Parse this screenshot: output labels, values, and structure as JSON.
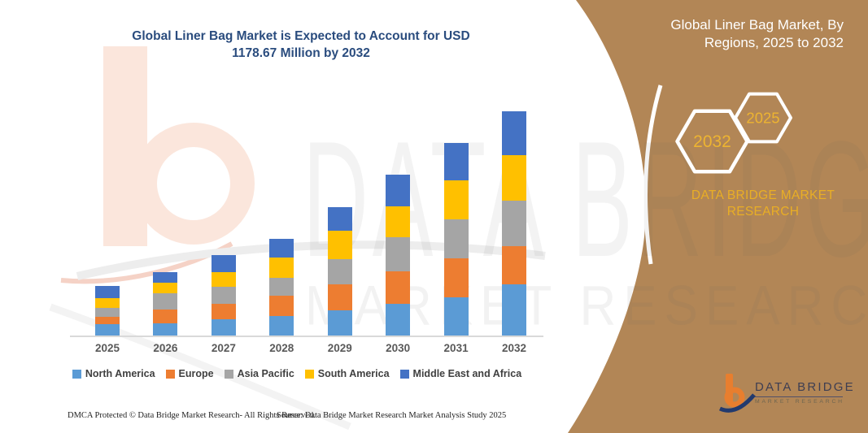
{
  "title": {
    "line1": "Global Liner Bag Market is Expected to Account for USD",
    "line2": "1178.67 Million by 2032"
  },
  "side_panel": {
    "heading_line1": "Global Liner Bag Market, By",
    "heading_line2": "Regions, 2025 to 2032",
    "hexagon_left_year": "2032",
    "hexagon_right_year": "2025",
    "brand_line1": "DATA BRIDGE MARKET",
    "brand_line2": "RESEARCH",
    "panel_color": "#B28656",
    "gold_color": "#EDB431"
  },
  "logo": {
    "name": "DATA BRIDGE",
    "subtitle": "MARKET RESEARCH",
    "orange": "#E87E2E",
    "navy": "#223A6E"
  },
  "watermark": {
    "line1": "DATA BRIDGE",
    "line2": "MARKET RESEARCH"
  },
  "footer": {
    "left": "DMCA Protected © Data Bridge Market Research-  All Rights Reserved.",
    "right": "Source: Data Bridge Market Research  Market Analysis Study 2025"
  },
  "chart_data": {
    "type": "bar",
    "stacked": true,
    "title": "Global Liner Bag Market is Expected to Account for USD 1178.67 Million by 2032",
    "unit": "USD Million",
    "categories": [
      "2025",
      "2026",
      "2027",
      "2028",
      "2029",
      "2030",
      "2031",
      "2032"
    ],
    "series": [
      {
        "name": "North America",
        "color": "#5B9BD5",
        "values": [
          60,
          65,
          87,
          104,
          132,
          165,
          201,
          268
        ]
      },
      {
        "name": "Europe",
        "color": "#ED7D31",
        "values": [
          37,
          71,
          78,
          104,
          139,
          171,
          206,
          201
        ]
      },
      {
        "name": "Asia Pacific",
        "color": "#A5A5A5",
        "values": [
          48,
          85,
          92,
          97,
          132,
          181,
          202,
          240
        ]
      },
      {
        "name": "South America",
        "color": "#FFC000",
        "values": [
          52,
          57,
          75,
          107,
          148,
          161,
          206,
          237
        ]
      },
      {
        "name": "Middle East and Africa",
        "color": "#4472C4",
        "values": [
          63,
          57,
          91,
          98,
          122,
          166,
          199,
          232.67
        ]
      }
    ],
    "totals": [
      260,
      335,
      423,
      510,
      673,
      844,
      1014,
      1178.67
    ],
    "ylim": [
      0,
      1250
    ],
    "grid": false,
    "legend_position": "bottom",
    "axis_line_color": "#D9D9D9"
  }
}
